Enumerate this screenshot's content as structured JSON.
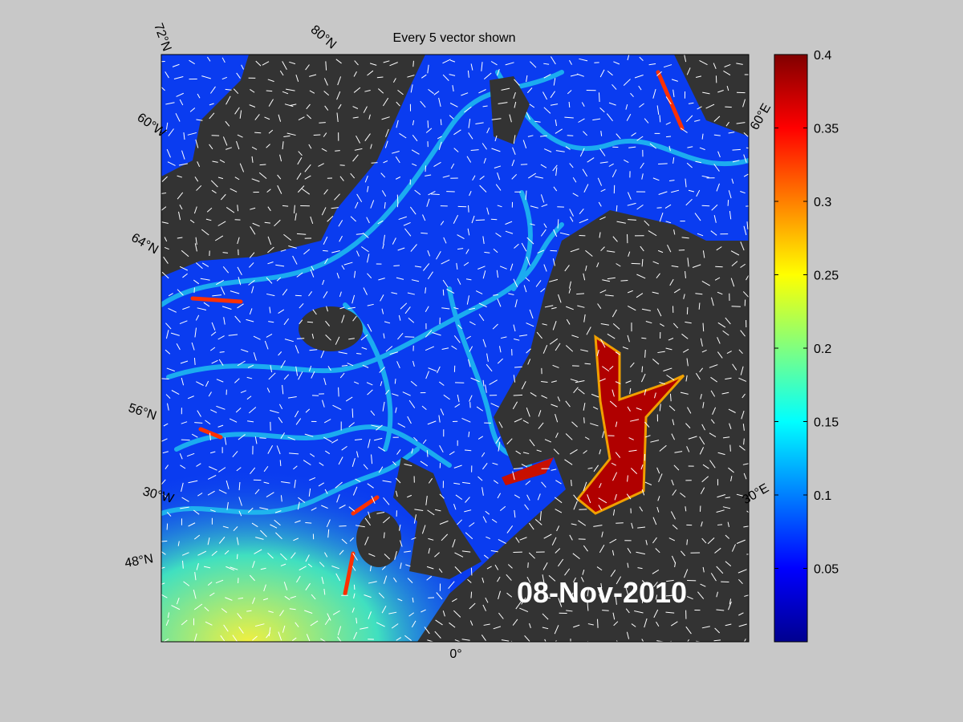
{
  "title": "Every 5 vector shown",
  "date_label": "08-Nov-2010",
  "graticule_labels": [
    "72°N",
    "80°N",
    "60°W",
    "64°N",
    "56°N",
    "30°W",
    "48°N",
    "0°",
    "60°E",
    "30°E"
  ],
  "colorbar": {
    "colormap": "jet",
    "clim": [
      0,
      0.4
    ],
    "ticks": [
      0.05,
      0.1,
      0.15,
      0.2,
      0.25,
      0.3,
      0.35,
      0.4
    ]
  }
}
